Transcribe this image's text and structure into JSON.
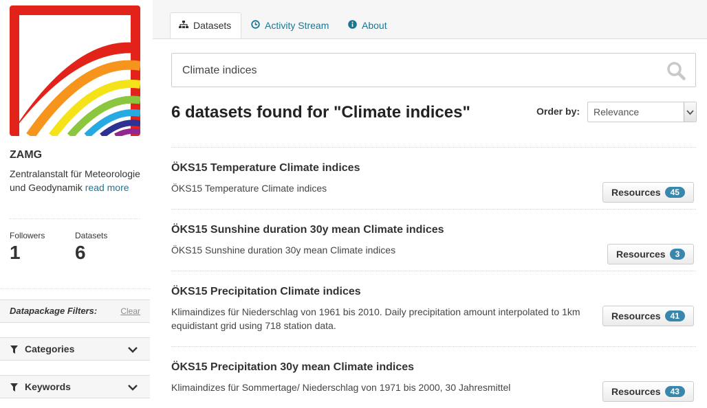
{
  "org": {
    "name": "ZAMG",
    "description": "Zentralanstalt für Meteorologie und Geodynamik",
    "read_more": "read more",
    "followers_label": "Followers",
    "followers_value": "1",
    "datasets_label": "Datasets",
    "datasets_value": "6"
  },
  "filters": {
    "title": "Datapackage Filters:",
    "clear": "Clear",
    "facets": [
      {
        "label": "Categories",
        "icon": "filter-icon"
      },
      {
        "label": "Keywords",
        "icon": "filter-icon"
      }
    ]
  },
  "tabs": [
    {
      "label": "Datasets",
      "icon": "sitemap-icon",
      "active": true
    },
    {
      "label": "Activity Stream",
      "icon": "clock-icon",
      "active": false
    },
    {
      "label": "About",
      "icon": "info-icon",
      "active": false
    }
  ],
  "search": {
    "value": "Climate indices"
  },
  "results": {
    "heading": "6 datasets found for \"Climate indices\"",
    "order_label": "Order by:",
    "order_value": "Relevance"
  },
  "datasets": [
    {
      "title": "ÖKS15 Temperature Climate indices",
      "description": "ÖKS15 Temperature Climate indices",
      "button_label": "Resources",
      "count": "45"
    },
    {
      "title": "ÖKS15 Sunshine duration 30y mean Climate indices",
      "description": "ÖKS15 Sunshine duration 30y mean Climate indices",
      "button_label": "Resources",
      "count": "3"
    },
    {
      "title": "ÖKS15 Precipitation Climate indices",
      "description": "Klimaindizes für Niederschlag von 1961 bis 2010. Daily precipitation amount interpolated to 1km equidistant grid using 718 station data.",
      "button_label": "Resources",
      "count": "41"
    },
    {
      "title": "ÖKS15 Precipitation 30y mean Climate indices",
      "description": "Klimaindizes für Sommertage/ Niederschlag von 1971 bis 2000, 30 Jahresmittel",
      "button_label": "Resources",
      "count": "43"
    }
  ],
  "colors": {
    "link": "#187794",
    "badge": "#3a87ad",
    "logo_red": "#e2231a"
  }
}
